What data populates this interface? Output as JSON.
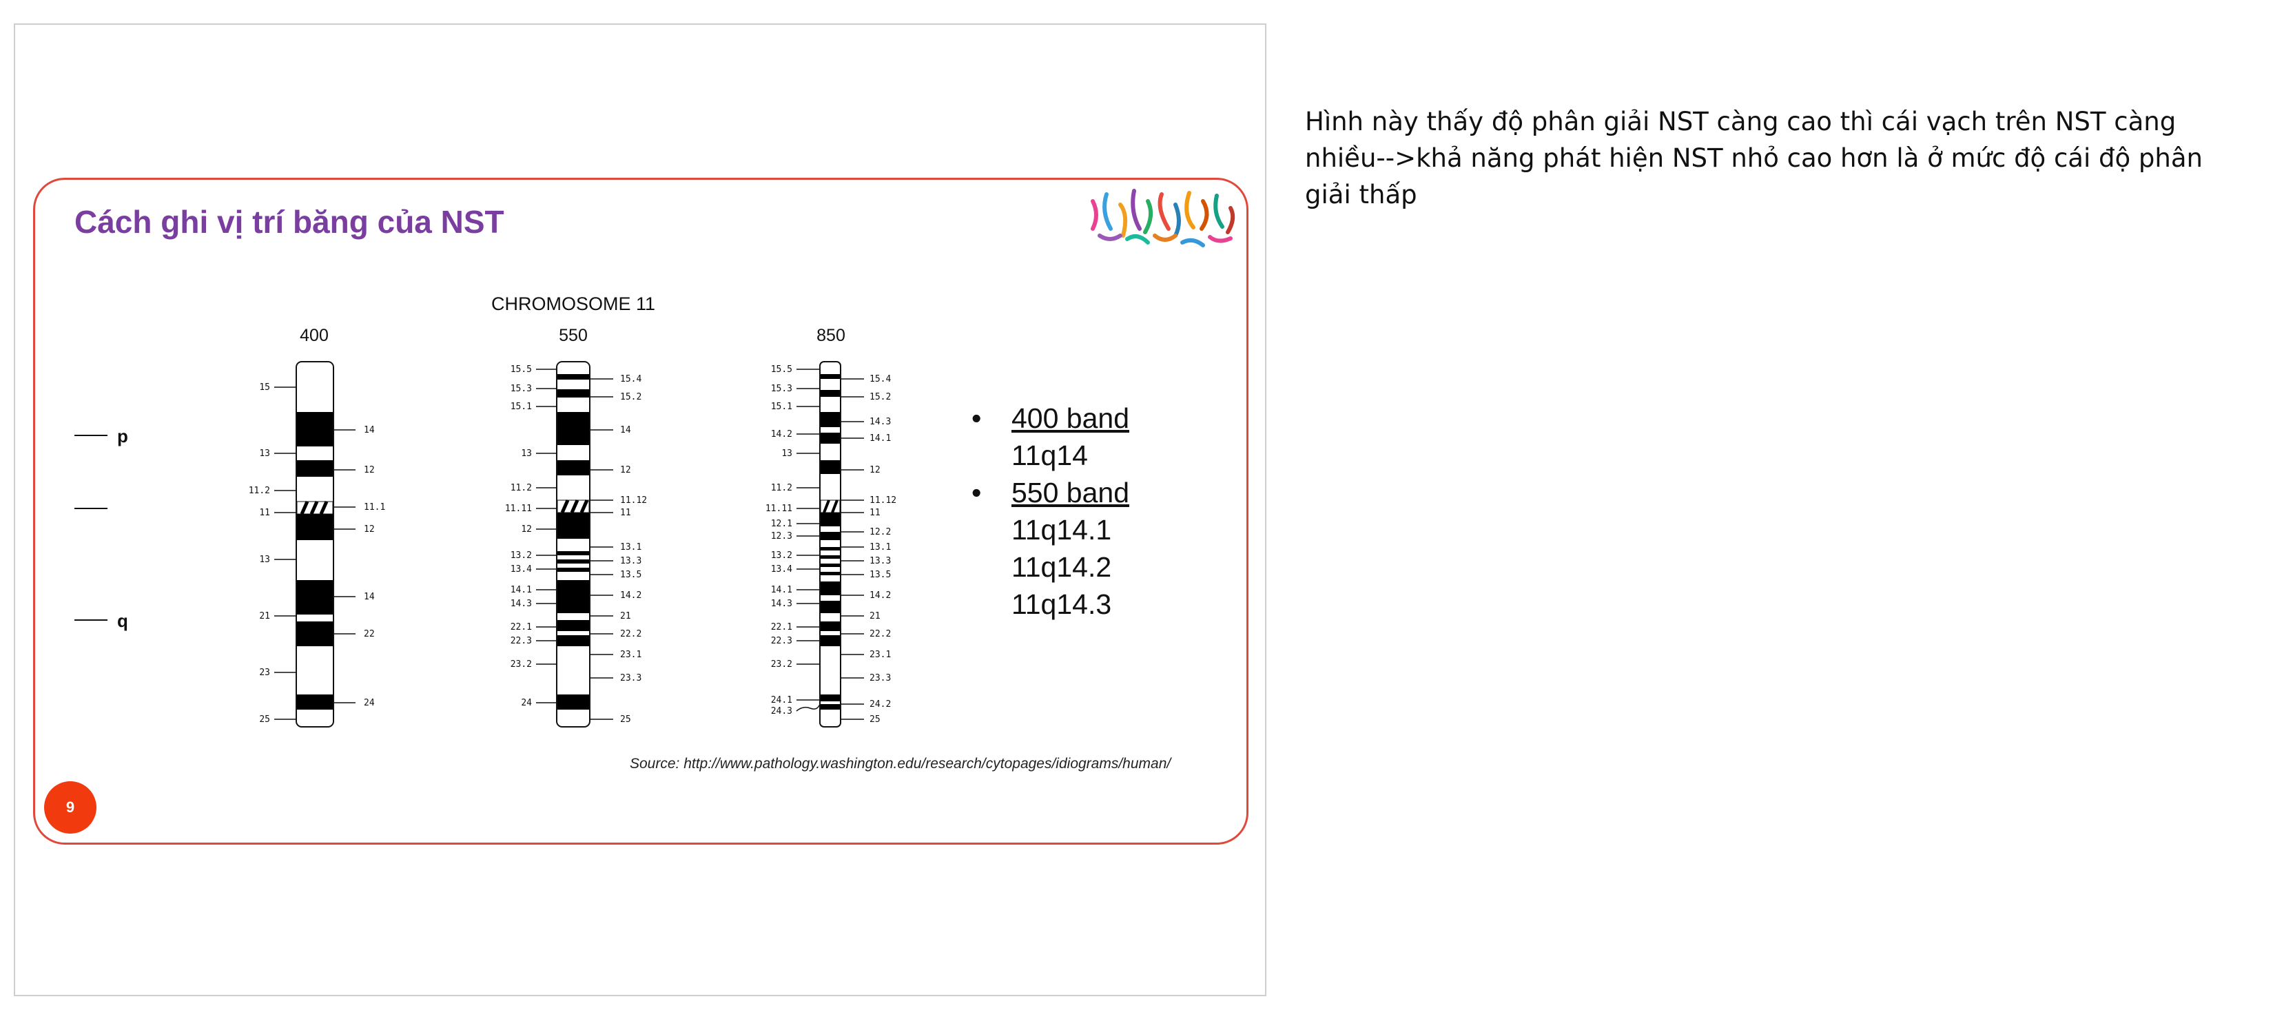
{
  "slide": {
    "title": "Cách ghi vị trí băng của NST",
    "diagram_title": "CHROMOSOME 11",
    "page_number": "9",
    "source": "Source: http://www.pathology.washington.edu/research/cytopages/idiograms/human/",
    "arm_labels": {
      "p": "p",
      "q": "q"
    },
    "chromosomes": [
      {
        "resolution": "400",
        "left_labels": [
          "15",
          "13",
          "11.2",
          "11",
          "13",
          "21",
          "23",
          "25"
        ],
        "right_labels": [
          "14",
          "12",
          "11.1",
          "12",
          "14",
          "22",
          "24"
        ]
      },
      {
        "resolution": "550",
        "left_labels": [
          "15.5",
          "15.3",
          "15.1",
          "13",
          "11.2",
          "11.11",
          "12",
          "13.2",
          "13.4",
          "14.1",
          "14.3",
          "22.1",
          "22.3",
          "23.2",
          "24"
        ],
        "right_labels": [
          "15.4",
          "15.2",
          "14",
          "12",
          "11.12",
          "11",
          "13.1",
          "13.3",
          "13.5",
          "14.2",
          "21",
          "22.2",
          "23.1",
          "23.3",
          "25"
        ]
      },
      {
        "resolution": "850",
        "left_labels": [
          "15.5",
          "15.3",
          "15.1",
          "14.2",
          "13",
          "11.2",
          "11.11",
          "12.1",
          "12.3",
          "13.2",
          "13.4",
          "14.1",
          "14.3",
          "22.1",
          "22.3",
          "23.2",
          "24.1",
          "24.3"
        ],
        "right_labels": [
          "15.4",
          "15.2",
          "14.3",
          "14.1",
          "12",
          "11.12",
          "11",
          "12.2",
          "13.1",
          "13.3",
          "13.5",
          "14.2",
          "21",
          "22.2",
          "23.1",
          "23.3",
          "24.2",
          "25"
        ]
      }
    ],
    "bullets": [
      {
        "marker": "•",
        "heading": "400 band",
        "items": [
          "11q14"
        ]
      },
      {
        "marker": "•",
        "heading": "550 band",
        "items": [
          "11q14.1",
          "11q14.2",
          "11q14.3"
        ]
      }
    ]
  },
  "notes": {
    "text": "Hình này thấy độ phân giải NST càng cao thì cái vạch trên NST càng nhiều-->khả năng phát hiện NST nhỏ cao hơn là ở mức độ cái độ phân giải thấp"
  },
  "colors": {
    "title": "#7a3ea0",
    "slide_border": "#e0483c",
    "page_badge": "#f23a0f",
    "band": "#000000"
  },
  "icons": {
    "logo": "karyotype-chromosomes-logo"
  }
}
